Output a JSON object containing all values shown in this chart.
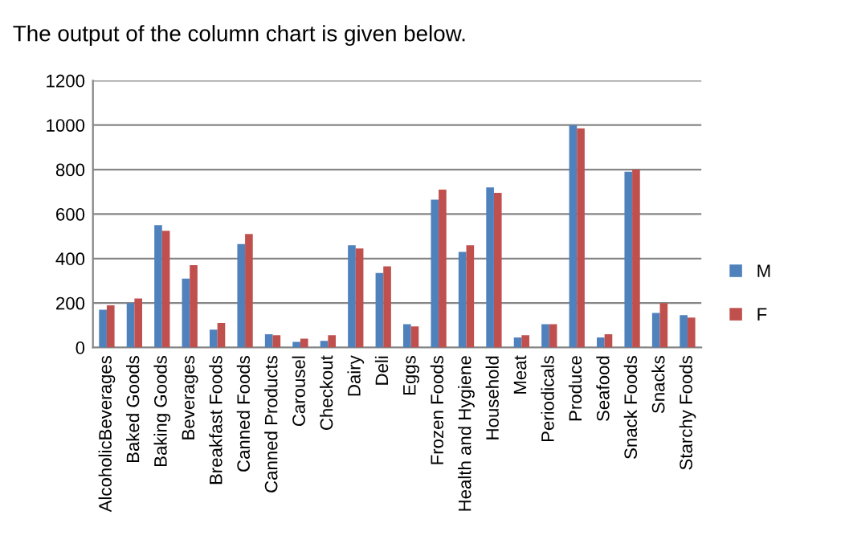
{
  "chart_data": {
    "type": "bar",
    "title": "The output of the column chart is given below.",
    "categories": [
      "AlcoholicBeverages",
      "Baked Goods",
      "Baking Goods",
      "Beverages",
      "Breakfast Foods",
      "Canned Foods",
      "Canned Products",
      "Carousel",
      "Checkout",
      "Dairy",
      "Deli",
      "Eggs",
      "Frozen Foods",
      "Health and Hygiene",
      "Household",
      "Meat",
      "Periodicals",
      "Produce",
      "Seafood",
      "Snack Foods",
      "Snacks",
      "Starchy Foods"
    ],
    "series": [
      {
        "name": "M",
        "color": "#4f81bd",
        "values": [
          170,
          200,
          550,
          310,
          80,
          465,
          60,
          25,
          30,
          460,
          335,
          105,
          665,
          430,
          720,
          45,
          105,
          1000,
          45,
          790,
          155,
          145
        ]
      },
      {
        "name": "F",
        "color": "#c0504d",
        "values": [
          190,
          220,
          525,
          370,
          110,
          510,
          55,
          40,
          55,
          445,
          365,
          95,
          710,
          460,
          695,
          55,
          105,
          985,
          60,
          800,
          200,
          135
        ]
      }
    ],
    "ylim": [
      0,
      1200
    ],
    "yticks": [
      0,
      200,
      400,
      600,
      800,
      1000,
      1200
    ],
    "grid": "y",
    "legend": "right"
  }
}
